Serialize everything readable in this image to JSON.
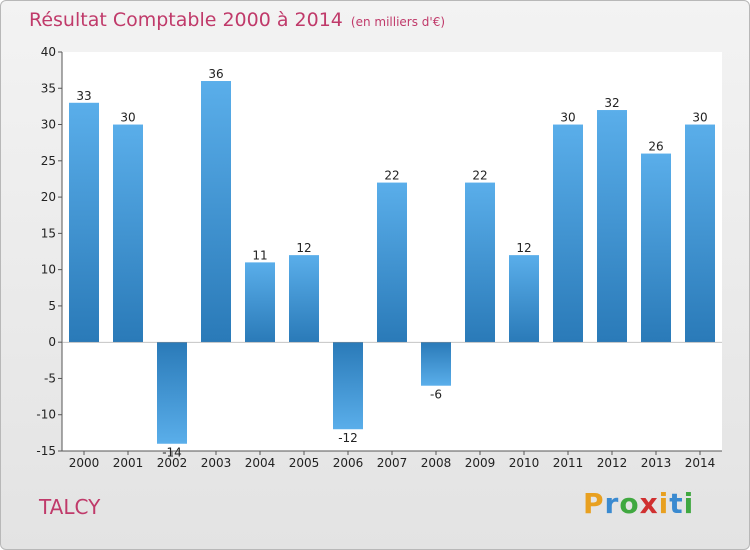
{
  "header": {
    "title": "Résultat Comptable 2000 à 2014",
    "subtitle": "(en milliers d'€)"
  },
  "footer": {
    "commune": "TALCY",
    "logo": "Proxiti"
  },
  "colors": {
    "bar_top": "#5aaeea",
    "bar_bottom": "#2a7ab8",
    "title": "#c03a6a"
  },
  "chart_data": {
    "type": "bar",
    "title": "Résultat Comptable 2000 à 2014",
    "subtitle": "(en milliers d'€)",
    "categories": [
      "2000",
      "2001",
      "2002",
      "2003",
      "2004",
      "2005",
      "2006",
      "2007",
      "2008",
      "2009",
      "2010",
      "2011",
      "2012",
      "2013",
      "2014"
    ],
    "values": [
      33,
      30,
      -14,
      36,
      11,
      12,
      -12,
      22,
      -6,
      22,
      12,
      30,
      32,
      26,
      30
    ],
    "ylim": [
      -15,
      40
    ],
    "yticks": [
      -15,
      -10,
      -5,
      0,
      5,
      10,
      15,
      20,
      25,
      30,
      35,
      40
    ],
    "grid": false,
    "legend": "none"
  }
}
